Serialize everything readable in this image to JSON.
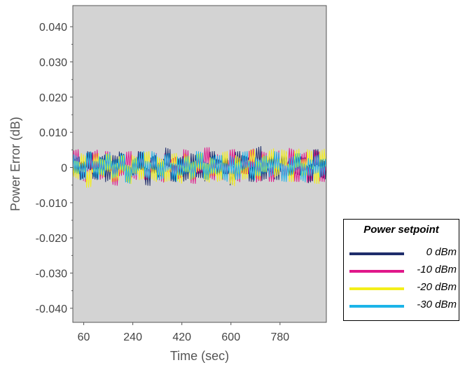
{
  "chart_data": {
    "type": "line",
    "xlabel": "Time (sec)",
    "ylabel": "Power Error (dB)",
    "xticks": [
      "60",
      "240",
      "420",
      "600",
      "780"
    ],
    "xtick_values": [
      60,
      240,
      420,
      600,
      780
    ],
    "xlim": [
      20,
      950
    ],
    "yticks": [
      "0.040",
      "0.030",
      "0.020",
      "0.010",
      "0",
      "-0.010",
      "-0.020",
      "-0.030",
      "-0.040"
    ],
    "ytick_values": [
      0.04,
      0.03,
      0.02,
      0.01,
      0,
      -0.01,
      -0.02,
      -0.03,
      -0.04
    ],
    "ylim": [
      -0.044,
      0.046
    ],
    "plot_background": "#d3d3d3",
    "grid": false,
    "legend": {
      "title": "Power setpoint",
      "position": "right"
    },
    "series": [
      {
        "name": "0 dBm",
        "color": "#1f2d6b",
        "x_start": 20,
        "x_end": 950,
        "amplitude": 0.003,
        "values": [
          0.001,
          -0.002,
          0.003,
          -0.001,
          0.002,
          -0.003,
          0.001,
          0.004,
          -0.002,
          0.0,
          0.003,
          -0.004,
          0.002,
          -0.001,
          0.005,
          -0.002,
          0.001,
          -0.003,
          0.002,
          0.0,
          -0.002,
          0.003,
          -0.001,
          0.002,
          -0.004,
          0.003,
          0.001,
          -0.002,
          0.006,
          -0.003,
          0.002,
          -0.001,
          0.003,
          -0.002,
          0.001,
          0.002,
          -0.003,
          0.004,
          -0.001,
          0.002
        ]
      },
      {
        "name": "-10 dBm",
        "color": "#e0178a",
        "x_start": 20,
        "x_end": 950,
        "amplitude": 0.003,
        "values": [
          0.004,
          -0.003,
          0.002,
          0.005,
          -0.002,
          0.003,
          -0.004,
          0.001,
          0.003,
          -0.002,
          0.004,
          -0.001,
          0.002,
          -0.003,
          0.003,
          0.001,
          -0.002,
          0.004,
          -0.003,
          0.002,
          0.005,
          -0.002,
          0.003,
          -0.001,
          0.004,
          -0.003,
          0.002,
          0.005,
          -0.004,
          0.003,
          -0.002,
          0.004,
          -0.003,
          0.005,
          -0.002,
          0.003,
          -0.004,
          0.004,
          -0.002,
          0.003
        ]
      },
      {
        "name": "-20 dBm",
        "color": "#f4ef1a",
        "x_start": 20,
        "x_end": 950,
        "amplitude": 0.003,
        "values": [
          -0.002,
          0.003,
          -0.005,
          0.002,
          -0.001,
          0.003,
          -0.002,
          0.001,
          -0.004,
          0.002,
          -0.001,
          0.003,
          -0.003,
          0.001,
          -0.002,
          0.002,
          -0.004,
          0.003,
          -0.001,
          0.002,
          -0.003,
          0.001,
          -0.002,
          0.003,
          -0.005,
          0.002,
          -0.001,
          0.004,
          -0.002,
          0.003,
          0.005,
          -0.001,
          0.004,
          -0.002,
          0.005,
          -0.001,
          0.004,
          -0.003,
          0.005,
          0.003
        ]
      },
      {
        "name": "-30 dBm",
        "color": "#1cb4e8",
        "x_start": 20,
        "x_end": 950,
        "amplitude": 0.003,
        "values": [
          0.002,
          -0.001,
          0.003,
          -0.002,
          0.001,
          0.004,
          -0.001,
          0.002,
          -0.003,
          0.001,
          0.003,
          -0.002,
          0.004,
          -0.001,
          0.002,
          -0.003,
          0.001,
          0.002,
          -0.002,
          0.003,
          -0.001,
          0.002,
          0.001,
          -0.003,
          0.002,
          -0.001,
          0.003,
          -0.002,
          0.001,
          0.002,
          -0.001,
          0.003,
          -0.002,
          0.001,
          0.002,
          -0.003,
          0.001,
          0.002,
          -0.001,
          0.002
        ]
      }
    ]
  }
}
